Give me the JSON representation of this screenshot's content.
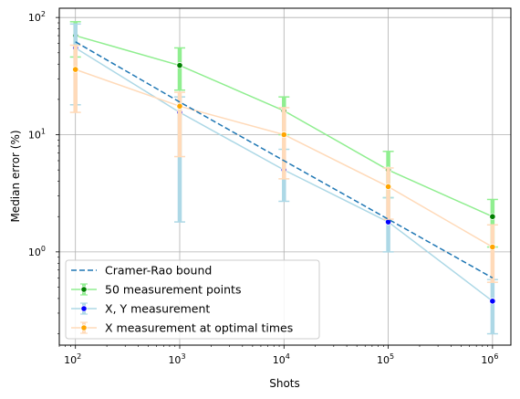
{
  "chart_data": {
    "type": "line",
    "xlabel": "Shots",
    "ylabel": "Median error (%)",
    "xscale": "log",
    "yscale": "log",
    "x": [
      100,
      1000,
      10000,
      100000,
      1000000
    ],
    "x_tick_labels": [
      {
        "base": "10",
        "exp": "2"
      },
      {
        "base": "10",
        "exp": "3"
      },
      {
        "base": "10",
        "exp": "4"
      },
      {
        "base": "10",
        "exp": "5"
      },
      {
        "base": "10",
        "exp": "6"
      }
    ],
    "y_tick_labels": [
      {
        "value": 1,
        "base": "10",
        "exp": "0"
      },
      {
        "value": 10,
        "base": "10",
        "exp": "1"
      },
      {
        "value": 100,
        "base": "10",
        "exp": "2"
      }
    ],
    "xlim": [
      70,
      1500000
    ],
    "ylim": [
      0.16,
      120
    ],
    "grid": true,
    "legend_position": "lower-left",
    "series": [
      {
        "name": "Cramer-Rao bound",
        "color": "#1f77b4",
        "style": "dashed",
        "values": [
          62,
          19,
          6,
          1.9,
          0.6
        ]
      },
      {
        "name": "50 measurement points",
        "color": "#90ee90",
        "marker_color": "#008000",
        "style": "solid",
        "values": [
          70,
          39,
          16,
          5,
          2.0
        ],
        "err_low": [
          46,
          24,
          10,
          2.9,
          1.1
        ],
        "err_high": [
          92,
          55,
          21,
          7.2,
          2.8
        ]
      },
      {
        "name": "X, Y measurement",
        "color": "#add8e6",
        "marker_color": "#0000ff",
        "style": "solid",
        "values": [
          55,
          15.5,
          5,
          1.8,
          0.38
        ],
        "err_low": [
          18,
          1.8,
          2.7,
          1.0,
          0.2
        ],
        "err_high": [
          88,
          21,
          7.5,
          2.9,
          0.58
        ]
      },
      {
        "name": "X measurement at optimal times",
        "color": "#ffdab9",
        "marker_color": "#ffa500",
        "style": "solid",
        "values": [
          36,
          17.5,
          10,
          3.6,
          1.1
        ],
        "err_low": [
          15.5,
          6.5,
          4.2,
          1.9,
          0.55
        ],
        "err_high": [
          58,
          23,
          17,
          5.2,
          1.7
        ]
      }
    ]
  }
}
